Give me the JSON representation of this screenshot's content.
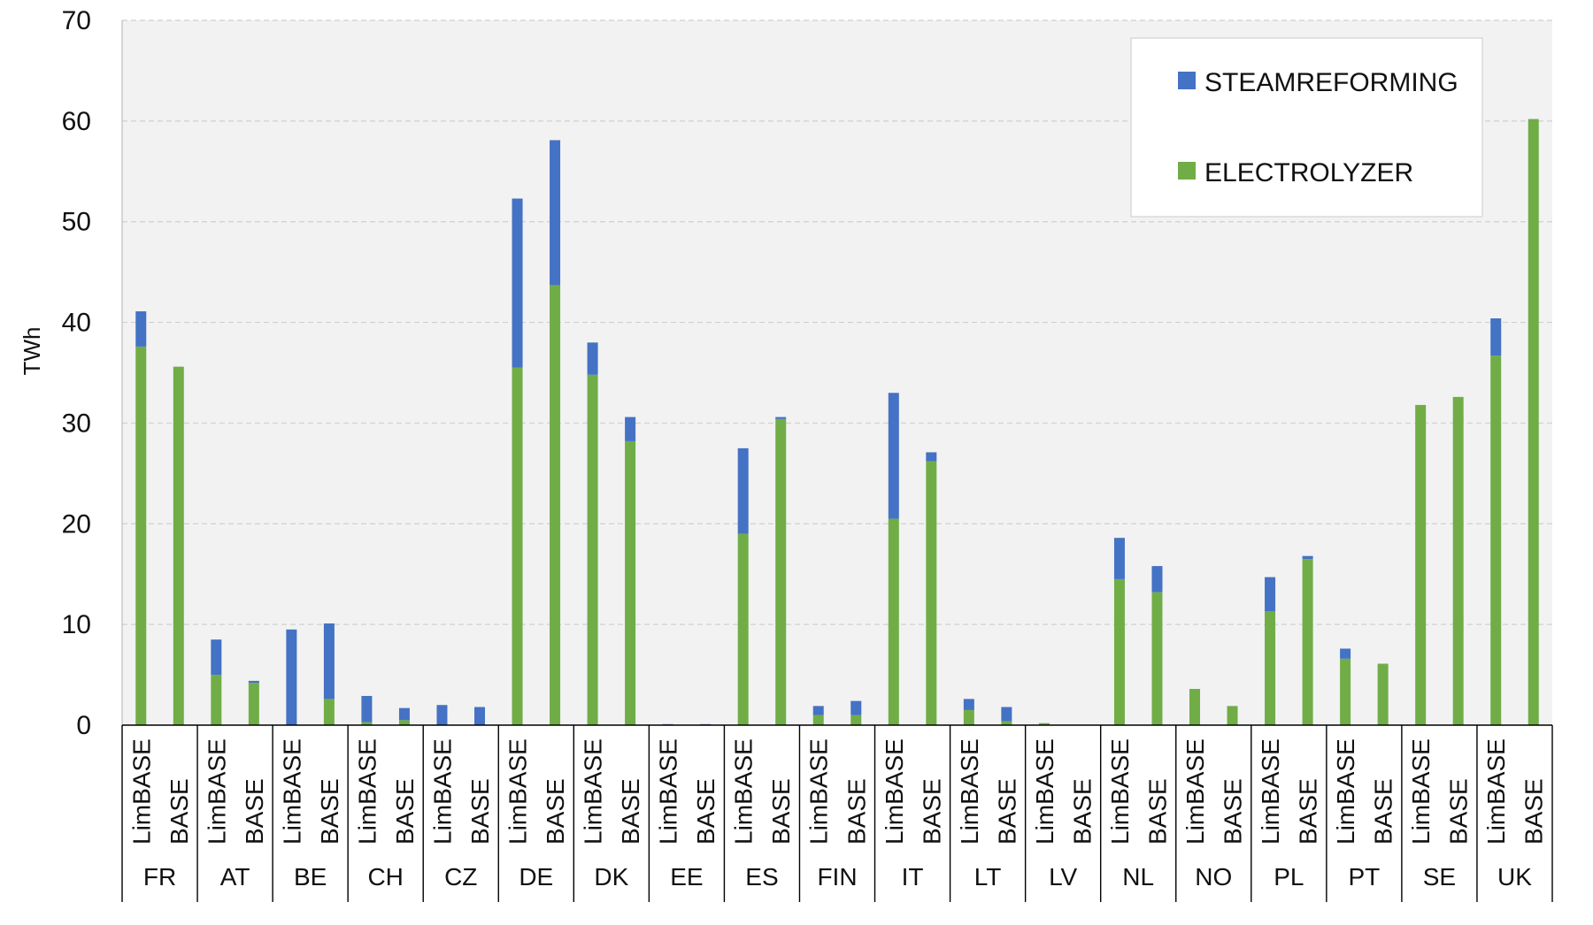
{
  "chart_data": {
    "type": "bar",
    "stacked": true,
    "ylabel": "TWh",
    "ylim": [
      0,
      70
    ],
    "yticks": [
      0,
      10,
      20,
      30,
      40,
      50,
      60,
      70
    ],
    "grid": true,
    "legend_position": "top-right",
    "groups": [
      "FR",
      "AT",
      "BE",
      "CH",
      "CZ",
      "DE",
      "DK",
      "EE",
      "ES",
      "FIN",
      "IT",
      "LT",
      "LV",
      "NL",
      "NO",
      "PL",
      "PT",
      "SE",
      "UK"
    ],
    "sub_categories": [
      "LimBASE",
      "BASE"
    ],
    "series": [
      {
        "name": "ELECTROLYZER",
        "color": "#70AD47",
        "values": [
          37.6,
          35.6,
          5.0,
          4.2,
          0.0,
          2.6,
          0.3,
          0.5,
          0.0,
          0.0,
          35.5,
          43.7,
          34.8,
          28.2,
          0.0,
          0.0,
          19.0,
          30.4,
          1.0,
          1.0,
          20.5,
          26.2,
          1.5,
          0.4,
          0.2,
          0.0,
          14.5,
          13.2,
          3.6,
          1.9,
          11.3,
          16.5,
          6.6,
          6.1,
          31.8,
          32.6,
          36.7,
          60.2
        ]
      },
      {
        "name": "STEAMREFORMING",
        "color": "#4472C4",
        "values": [
          3.5,
          0.0,
          3.5,
          0.2,
          9.5,
          7.5,
          2.6,
          1.2,
          2.0,
          1.8,
          16.8,
          14.4,
          3.2,
          2.4,
          0.1,
          0.1,
          8.5,
          0.2,
          0.9,
          1.4,
          12.5,
          0.9,
          1.1,
          1.4,
          0.0,
          0.0,
          4.1,
          2.6,
          0.0,
          0.0,
          3.4,
          0.3,
          1.0,
          0.0,
          0.0,
          0.0,
          3.7,
          0.0
        ]
      }
    ]
  }
}
